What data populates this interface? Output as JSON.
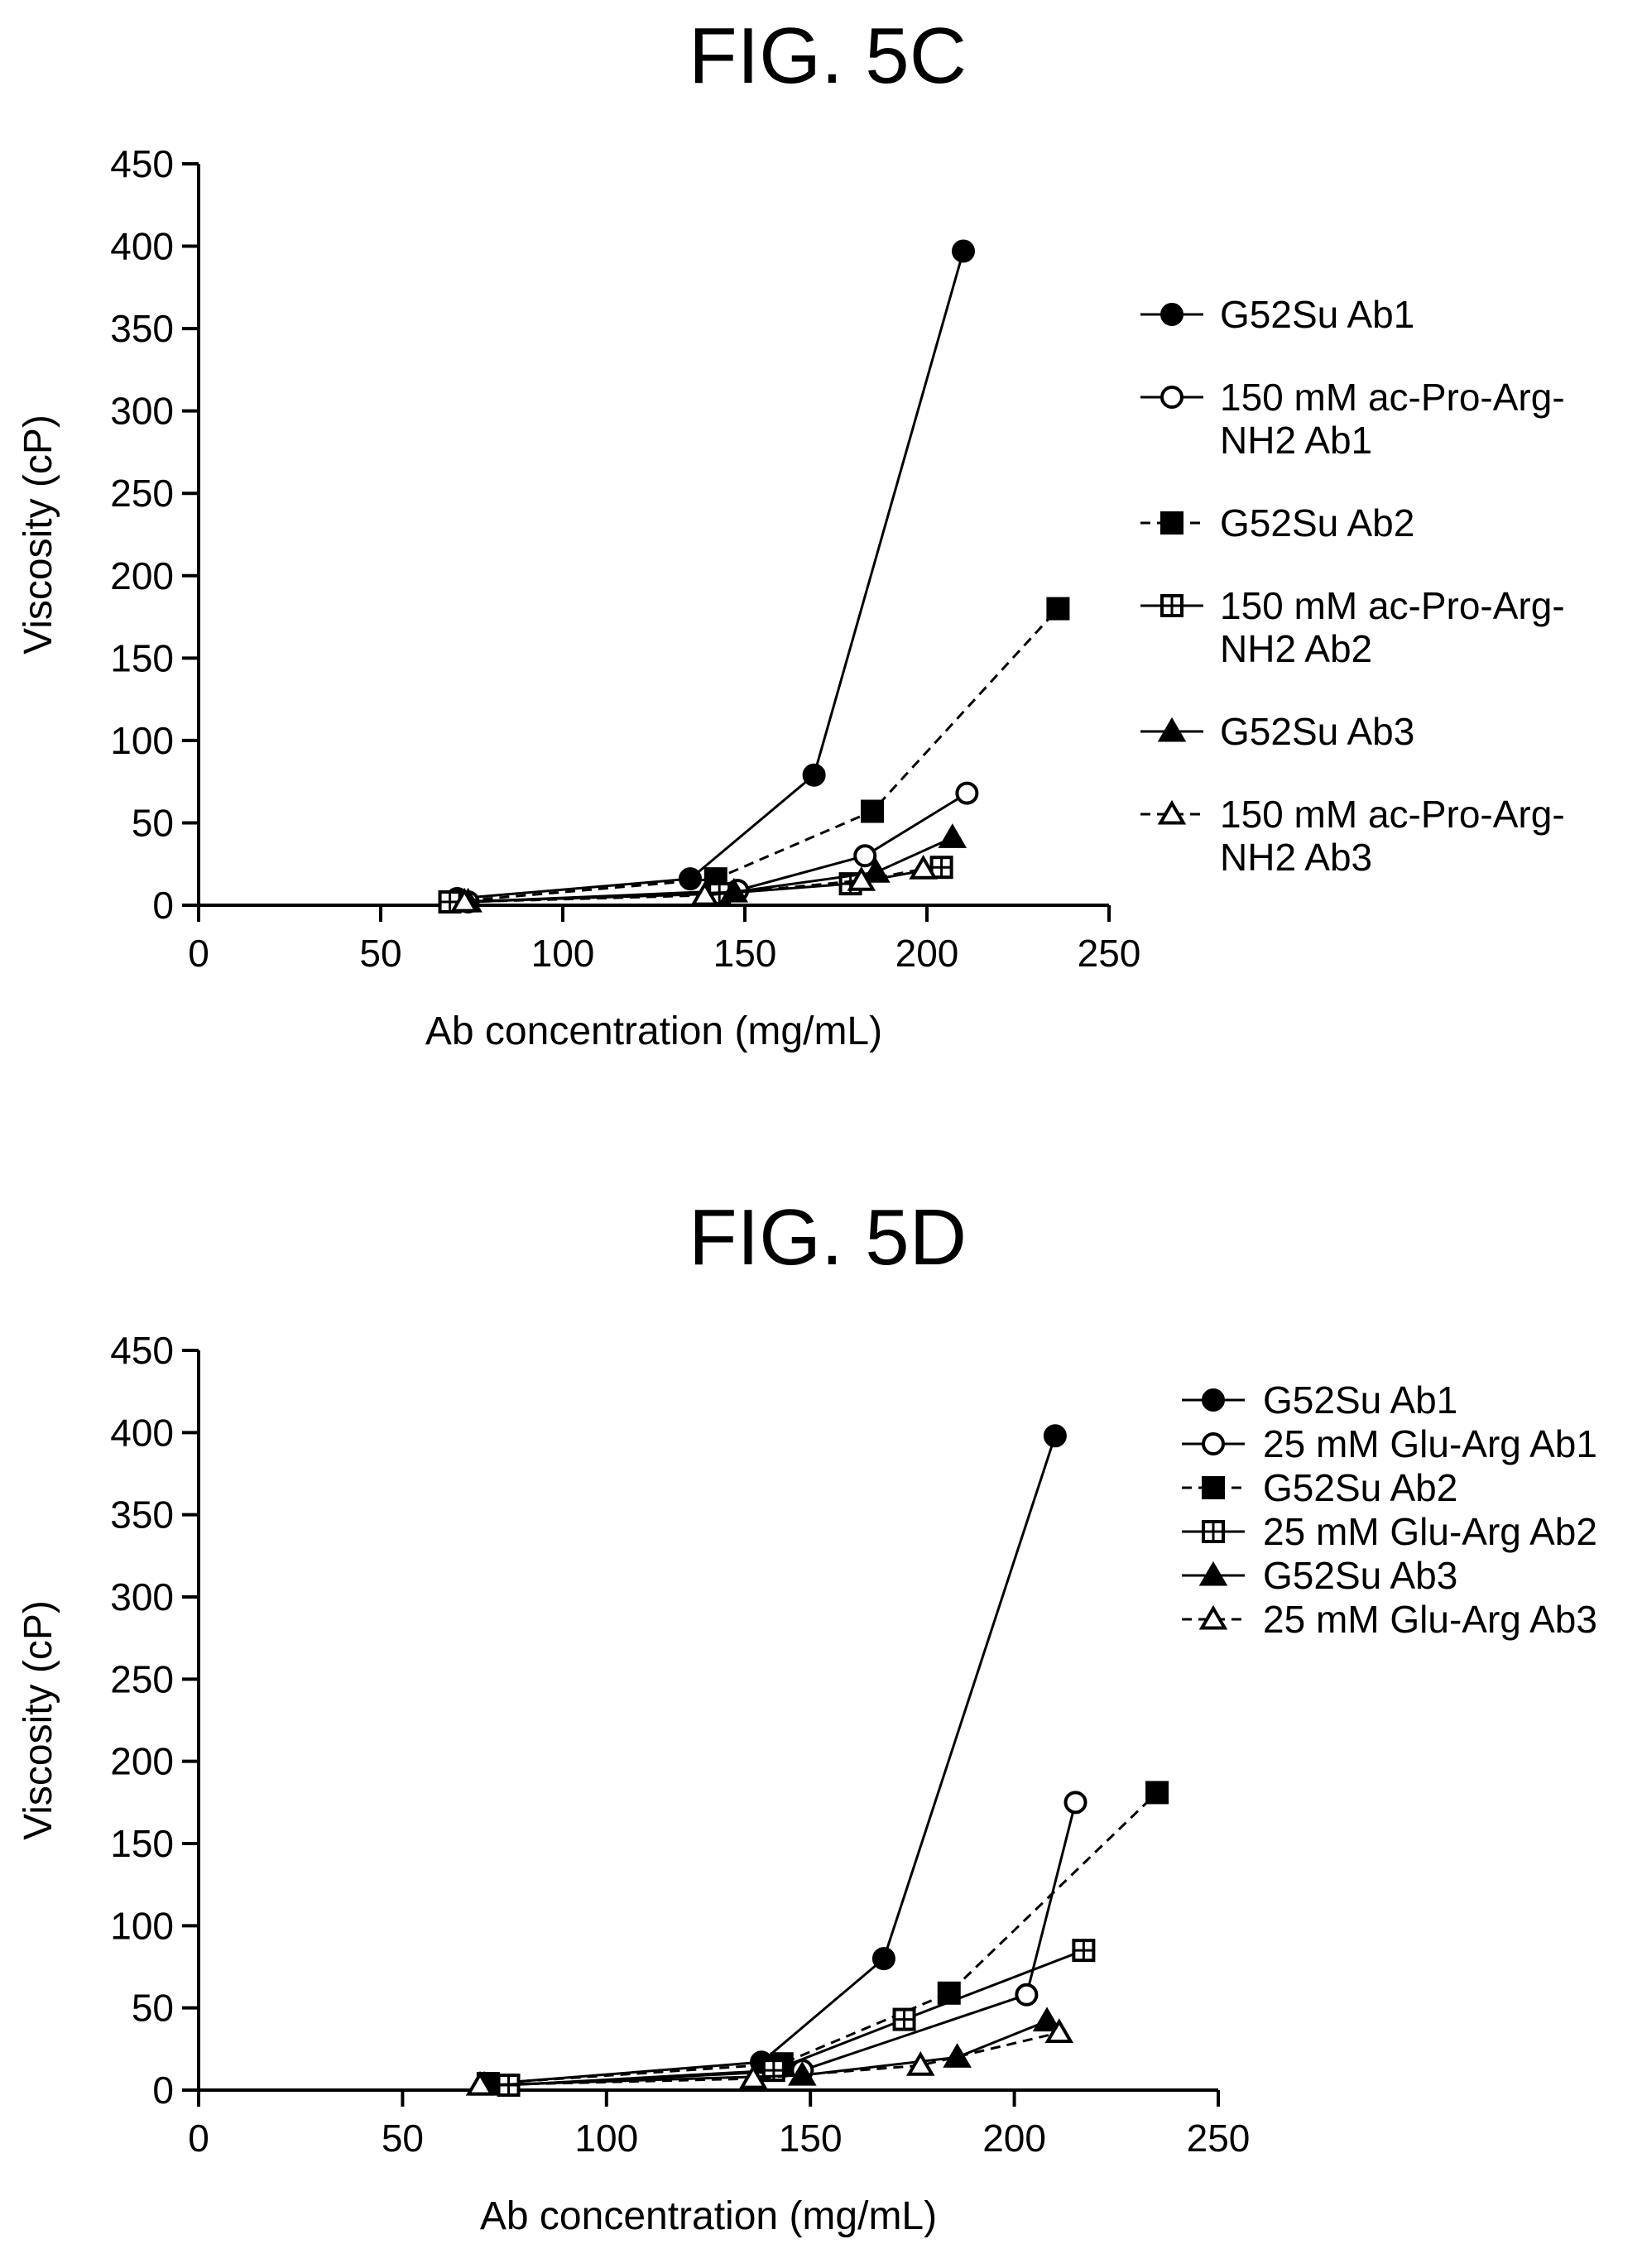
{
  "chart_data": [
    {
      "type": "line",
      "title": "FIG. 5C",
      "xlabel": "Ab concentration (mg/mL)",
      "ylabel": "Viscosity (cP)",
      "xlim": [
        0,
        250
      ],
      "ylim": [
        0,
        450
      ],
      "xticks": [
        "0",
        "50",
        "100",
        "150",
        "200",
        "250"
      ],
      "yticks": [
        "0",
        "50",
        "100",
        "150",
        "200",
        "250",
        "300",
        "350",
        "400",
        "450"
      ],
      "legend_position": "right",
      "grid": false,
      "series": [
        {
          "name": "G52Su Ab1",
          "legend_lines": [
            "G52Su Ab1"
          ],
          "marker": "circle-filled",
          "dash": false,
          "points": [
            [
              71,
              4
            ],
            [
              135,
              16
            ],
            [
              169,
              79
            ],
            [
              210,
              397
            ]
          ]
        },
        {
          "name": "150 mM ac-Pro-Arg-NH2 Ab1",
          "legend_lines": [
            "150 mM ac-Pro-Arg-",
            "NH2 Ab1"
          ],
          "marker": "circle-open",
          "dash": false,
          "points": [
            [
              74,
              2
            ],
            [
              148,
              9
            ],
            [
              183,
              30
            ],
            [
              211,
              68
            ]
          ]
        },
        {
          "name": "G52Su Ab2",
          "legend_lines": [
            "G52Su Ab2"
          ],
          "marker": "square-filled",
          "dash": true,
          "points": [
            [
              69,
              2
            ],
            [
              142,
              16
            ],
            [
              185,
              57
            ],
            [
              236,
              180
            ]
          ]
        },
        {
          "name": "150 mM ac-Pro-Arg-NH2 Ab2",
          "legend_lines": [
            "150 mM ac-Pro-Arg-",
            "NH2 Ab2"
          ],
          "marker": "square-grid",
          "dash": false,
          "points": [
            [
              69,
              2
            ],
            [
              143,
              7
            ],
            [
              179,
              13
            ],
            [
              204,
              23
            ]
          ]
        },
        {
          "name": "G52Su Ab3",
          "legend_lines": [
            "G52Su Ab3"
          ],
          "marker": "triangle-filled",
          "dash": false,
          "points": [
            [
              74,
              2
            ],
            [
              147,
              8
            ],
            [
              186,
              20
            ],
            [
              207,
              41
            ]
          ]
        },
        {
          "name": "150 mM ac-Pro-Arg-NH2 Ab3",
          "legend_lines": [
            "150 mM ac-Pro-Arg-",
            "NH2 Ab3"
          ],
          "marker": "triangle-open",
          "dash": true,
          "points": [
            [
              73,
              2
            ],
            [
              139,
              6
            ],
            [
              182,
              15
            ],
            [
              199,
              22
            ]
          ]
        }
      ]
    },
    {
      "type": "line",
      "title": "FIG. 5D",
      "xlabel": "Ab concentration (mg/mL)",
      "ylabel": "Viscosity (cP)",
      "xlim": [
        0,
        250
      ],
      "ylim": [
        0,
        450
      ],
      "xticks": [
        "0",
        "50",
        "100",
        "150",
        "200",
        "250"
      ],
      "yticks": [
        "0",
        "50",
        "100",
        "150",
        "200",
        "250",
        "300",
        "350",
        "400",
        "450"
      ],
      "legend_position": "top-right",
      "grid": false,
      "series": [
        {
          "name": "G52Su Ab1",
          "legend_lines": [
            "G52Su Ab1"
          ],
          "marker": "circle-filled",
          "dash": false,
          "points": [
            [
              72,
              4
            ],
            [
              138,
              17
            ],
            [
              168,
              80
            ],
            [
              210,
              398
            ]
          ]
        },
        {
          "name": "25 mM Glu-Arg Ab1",
          "legend_lines": [
            "25 mM Glu-Arg Ab1"
          ],
          "marker": "circle-open",
          "dash": false,
          "points": [
            [
              75,
              3
            ],
            [
              148,
              12
            ],
            [
              203,
              58
            ],
            [
              215,
              175
            ]
          ]
        },
        {
          "name": "G52Su Ab2",
          "legend_lines": [
            "G52Su Ab2"
          ],
          "marker": "square-filled",
          "dash": true,
          "points": [
            [
              71,
              4
            ],
            [
              143,
              16
            ],
            [
              184,
              59
            ],
            [
              235,
              181
            ]
          ]
        },
        {
          "name": "25 mM Glu-Arg Ab2",
          "legend_lines": [
            "25 mM Glu-Arg Ab2"
          ],
          "marker": "square-grid",
          "dash": false,
          "points": [
            [
              76,
              3
            ],
            [
              141,
              12
            ],
            [
              173,
              43
            ],
            [
              217,
              85
            ]
          ]
        },
        {
          "name": "G52Su Ab3",
          "legend_lines": [
            "G52Su Ab3"
          ],
          "marker": "triangle-filled",
          "dash": false,
          "points": [
            [
              70,
              3
            ],
            [
              148,
              9
            ],
            [
              186,
              20
            ],
            [
              208,
              42
            ]
          ]
        },
        {
          "name": "25 mM Glu-Arg Ab3",
          "legend_lines": [
            "25 mM Glu-Arg Ab3"
          ],
          "marker": "triangle-open",
          "dash": true,
          "points": [
            [
              69,
              3
            ],
            [
              136,
              7
            ],
            [
              177,
              15
            ],
            [
              211,
              35
            ]
          ]
        }
      ]
    }
  ]
}
